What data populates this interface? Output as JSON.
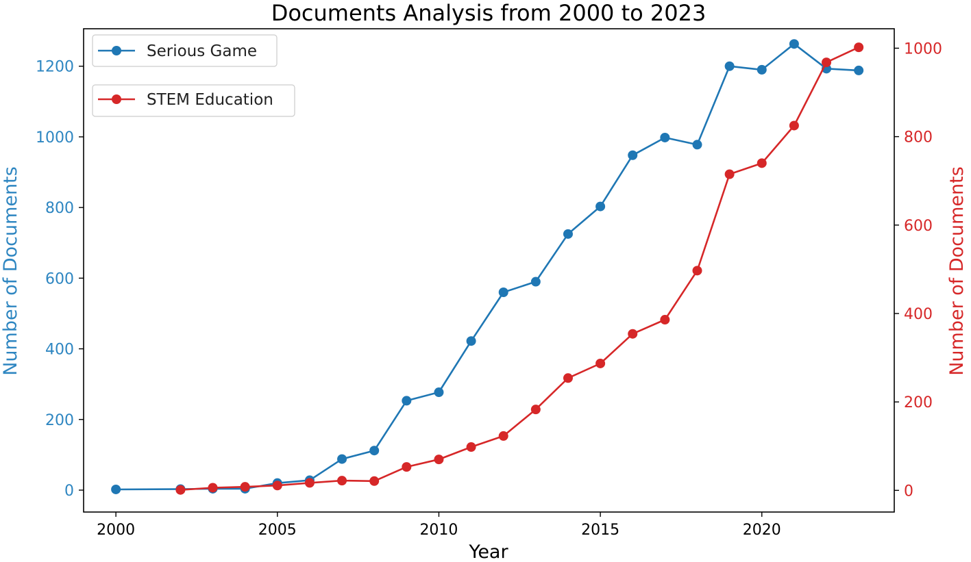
{
  "chart_data": {
    "type": "line",
    "title": "Documents Analysis from 2000 to 2023",
    "xlabel": "Year",
    "ylabel_left": "Number of Documents",
    "ylabel_right": "Number of Documents",
    "xlim": [
      1999.0,
      2024.1
    ],
    "ylim_left": [
      -62,
      1306
    ],
    "ylim_right": [
      -49,
      1044
    ],
    "x_ticks": [
      "2000",
      "2005",
      "2010",
      "2015",
      "2020"
    ],
    "y_ticks_left": [
      "0",
      "200",
      "400",
      "600",
      "800",
      "1000",
      "1200"
    ],
    "y_ticks_right": [
      "0",
      "200",
      "400",
      "600",
      "800",
      "1000"
    ],
    "grid": false,
    "legend_position": "top-left",
    "colors": {
      "left_axis": "#2e86c1",
      "right_axis": "#d62728"
    },
    "series": [
      {
        "name": "Serious Game",
        "axis": "left",
        "color": "#1f77b4",
        "x": [
          2000,
          2002,
          2003,
          2004,
          2005,
          2006,
          2007,
          2008,
          2009,
          2010,
          2011,
          2012,
          2013,
          2014,
          2015,
          2016,
          2017,
          2018,
          2019,
          2020,
          2021,
          2022,
          2023
        ],
        "y": [
          2,
          3,
          4,
          4,
          20,
          28,
          88,
          112,
          253,
          277,
          422,
          560,
          590,
          725,
          803,
          948,
          998,
          978,
          1200,
          1190,
          1263,
          1193,
          1188
        ]
      },
      {
        "name": "STEM Education",
        "axis": "right",
        "color": "#d62728",
        "x": [
          2002,
          2003,
          2004,
          2005,
          2006,
          2007,
          2008,
          2009,
          2010,
          2011,
          2012,
          2013,
          2014,
          2015,
          2016,
          2017,
          2018,
          2019,
          2020,
          2021,
          2022,
          2023
        ],
        "y": [
          1,
          6,
          8,
          11,
          17,
          22,
          21,
          53,
          70,
          98,
          123,
          183,
          254,
          287,
          354,
          386,
          497,
          715,
          740,
          825,
          968,
          1002
        ]
      }
    ]
  }
}
